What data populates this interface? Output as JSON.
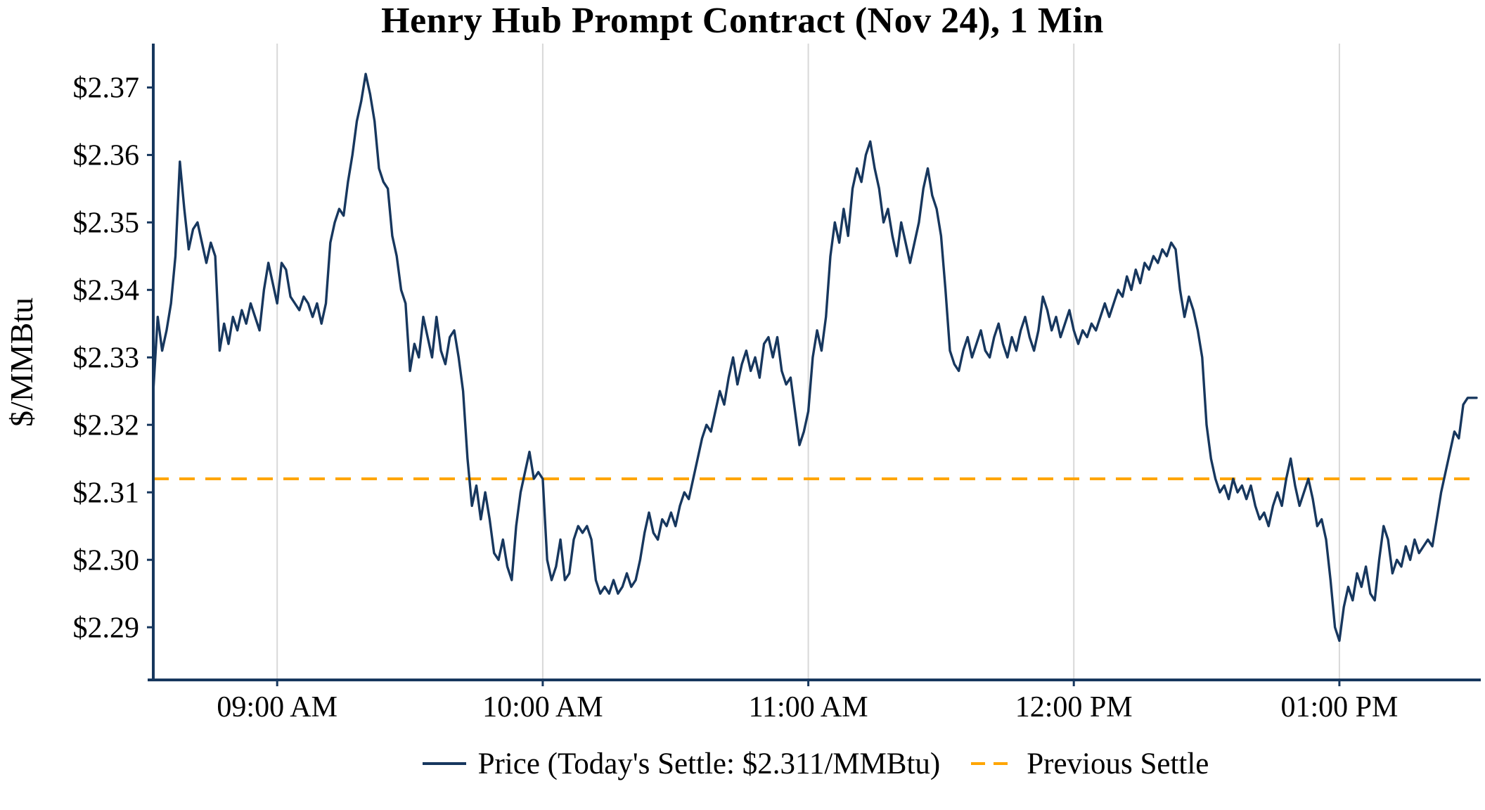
{
  "colors": {
    "price_line": "#17375e",
    "settle_line": "#ffa500",
    "axis": "#17375e",
    "grid": "#d8d8d8",
    "text": "#000000"
  },
  "legend": {
    "price_label": "Price (Today's Settle: $2.311/MMBtu)",
    "settle_label": "Previous Settle"
  },
  "chart_data": {
    "type": "line",
    "title": "Henry Hub Prompt Contract (Nov 24), 1 Min",
    "xlabel": "",
    "ylabel": "$/MMBtu",
    "ylim": [
      2.2822,
      2.3765
    ],
    "grid": "vertical-only",
    "legend_position": "bottom",
    "todays_settle": 2.311,
    "previous_settle": 2.312,
    "x_start_minute": 512,
    "x_interval_minutes": 1,
    "x_range_clock": [
      "08:32 AM",
      "01:31 PM"
    ],
    "x_tick_minutes": [
      540,
      600,
      660,
      720,
      780
    ],
    "x_tick_labels": [
      "09:00 AM",
      "10:00 AM",
      "11:00 AM",
      "12:00 PM",
      "01:00 PM"
    ],
    "y_ticks": [
      2.29,
      2.3,
      2.31,
      2.32,
      2.33,
      2.34,
      2.35,
      2.36,
      2.37
    ],
    "y_tick_labels": [
      "$2.29",
      "$2.30",
      "$2.31",
      "$2.32",
      "$2.33",
      "$2.34",
      "$2.35",
      "$2.36",
      "$2.37"
    ],
    "series": [
      {
        "name": "Price (Today's Settle: $2.311/MMBtu)",
        "style": "solid",
        "color": "#17375e",
        "values": [
          2.325,
          2.336,
          2.331,
          2.334,
          2.338,
          2.345,
          2.359,
          2.352,
          2.346,
          2.349,
          2.35,
          2.347,
          2.344,
          2.347,
          2.345,
          2.331,
          2.335,
          2.332,
          2.336,
          2.334,
          2.337,
          2.335,
          2.338,
          2.336,
          2.334,
          2.34,
          2.344,
          2.341,
          2.338,
          2.344,
          2.343,
          2.339,
          2.338,
          2.337,
          2.339,
          2.338,
          2.336,
          2.338,
          2.335,
          2.338,
          2.347,
          2.35,
          2.352,
          2.351,
          2.356,
          2.36,
          2.365,
          2.368,
          2.372,
          2.369,
          2.365,
          2.358,
          2.356,
          2.355,
          2.348,
          2.345,
          2.34,
          2.338,
          2.328,
          2.332,
          2.33,
          2.336,
          2.333,
          2.33,
          2.336,
          2.331,
          2.329,
          2.333,
          2.334,
          2.33,
          2.325,
          2.315,
          2.308,
          2.311,
          2.306,
          2.31,
          2.306,
          2.301,
          2.3,
          2.303,
          2.299,
          2.297,
          2.305,
          2.31,
          2.313,
          2.316,
          2.312,
          2.313,
          2.312,
          2.3,
          2.297,
          2.299,
          2.303,
          2.297,
          2.298,
          2.303,
          2.305,
          2.304,
          2.305,
          2.303,
          2.297,
          2.295,
          2.296,
          2.295,
          2.297,
          2.295,
          2.296,
          2.298,
          2.296,
          2.297,
          2.3,
          2.304,
          2.307,
          2.304,
          2.303,
          2.306,
          2.305,
          2.307,
          2.305,
          2.308,
          2.31,
          2.309,
          2.312,
          2.315,
          2.318,
          2.32,
          2.319,
          2.322,
          2.325,
          2.323,
          2.327,
          2.33,
          2.326,
          2.329,
          2.331,
          2.328,
          2.33,
          2.327,
          2.332,
          2.333,
          2.33,
          2.333,
          2.328,
          2.326,
          2.327,
          2.322,
          2.317,
          2.319,
          2.322,
          2.33,
          2.334,
          2.331,
          2.336,
          2.345,
          2.35,
          2.347,
          2.352,
          2.348,
          2.355,
          2.358,
          2.356,
          2.36,
          2.362,
          2.358,
          2.355,
          2.35,
          2.352,
          2.348,
          2.345,
          2.35,
          2.347,
          2.344,
          2.347,
          2.35,
          2.355,
          2.358,
          2.354,
          2.352,
          2.348,
          2.34,
          2.331,
          2.329,
          2.328,
          2.331,
          2.333,
          2.33,
          2.332,
          2.334,
          2.331,
          2.33,
          2.333,
          2.335,
          2.332,
          2.33,
          2.333,
          2.331,
          2.334,
          2.336,
          2.333,
          2.331,
          2.334,
          2.339,
          2.337,
          2.334,
          2.336,
          2.333,
          2.335,
          2.337,
          2.334,
          2.332,
          2.334,
          2.333,
          2.335,
          2.334,
          2.336,
          2.338,
          2.336,
          2.338,
          2.34,
          2.339,
          2.342,
          2.34,
          2.343,
          2.341,
          2.344,
          2.343,
          2.345,
          2.344,
          2.346,
          2.345,
          2.347,
          2.346,
          2.34,
          2.336,
          2.339,
          2.337,
          2.334,
          2.33,
          2.32,
          2.315,
          2.312,
          2.31,
          2.311,
          2.309,
          2.312,
          2.31,
          2.311,
          2.309,
          2.311,
          2.308,
          2.306,
          2.307,
          2.305,
          2.308,
          2.31,
          2.308,
          2.312,
          2.315,
          2.311,
          2.308,
          2.31,
          2.312,
          2.309,
          2.305,
          2.306,
          2.303,
          2.297,
          2.29,
          2.288,
          2.293,
          2.296,
          2.294,
          2.298,
          2.296,
          2.299,
          2.295,
          2.294,
          2.3,
          2.305,
          2.303,
          2.298,
          2.3,
          2.299,
          2.302,
          2.3,
          2.303,
          2.301,
          2.302,
          2.303,
          2.302,
          2.306,
          2.31,
          2.313,
          2.316,
          2.319,
          2.318,
          2.323,
          2.324,
          2.324,
          2.324
        ]
      },
      {
        "name": "Previous Settle",
        "style": "dashed",
        "color": "#ffa500",
        "value": 2.312
      }
    ]
  }
}
